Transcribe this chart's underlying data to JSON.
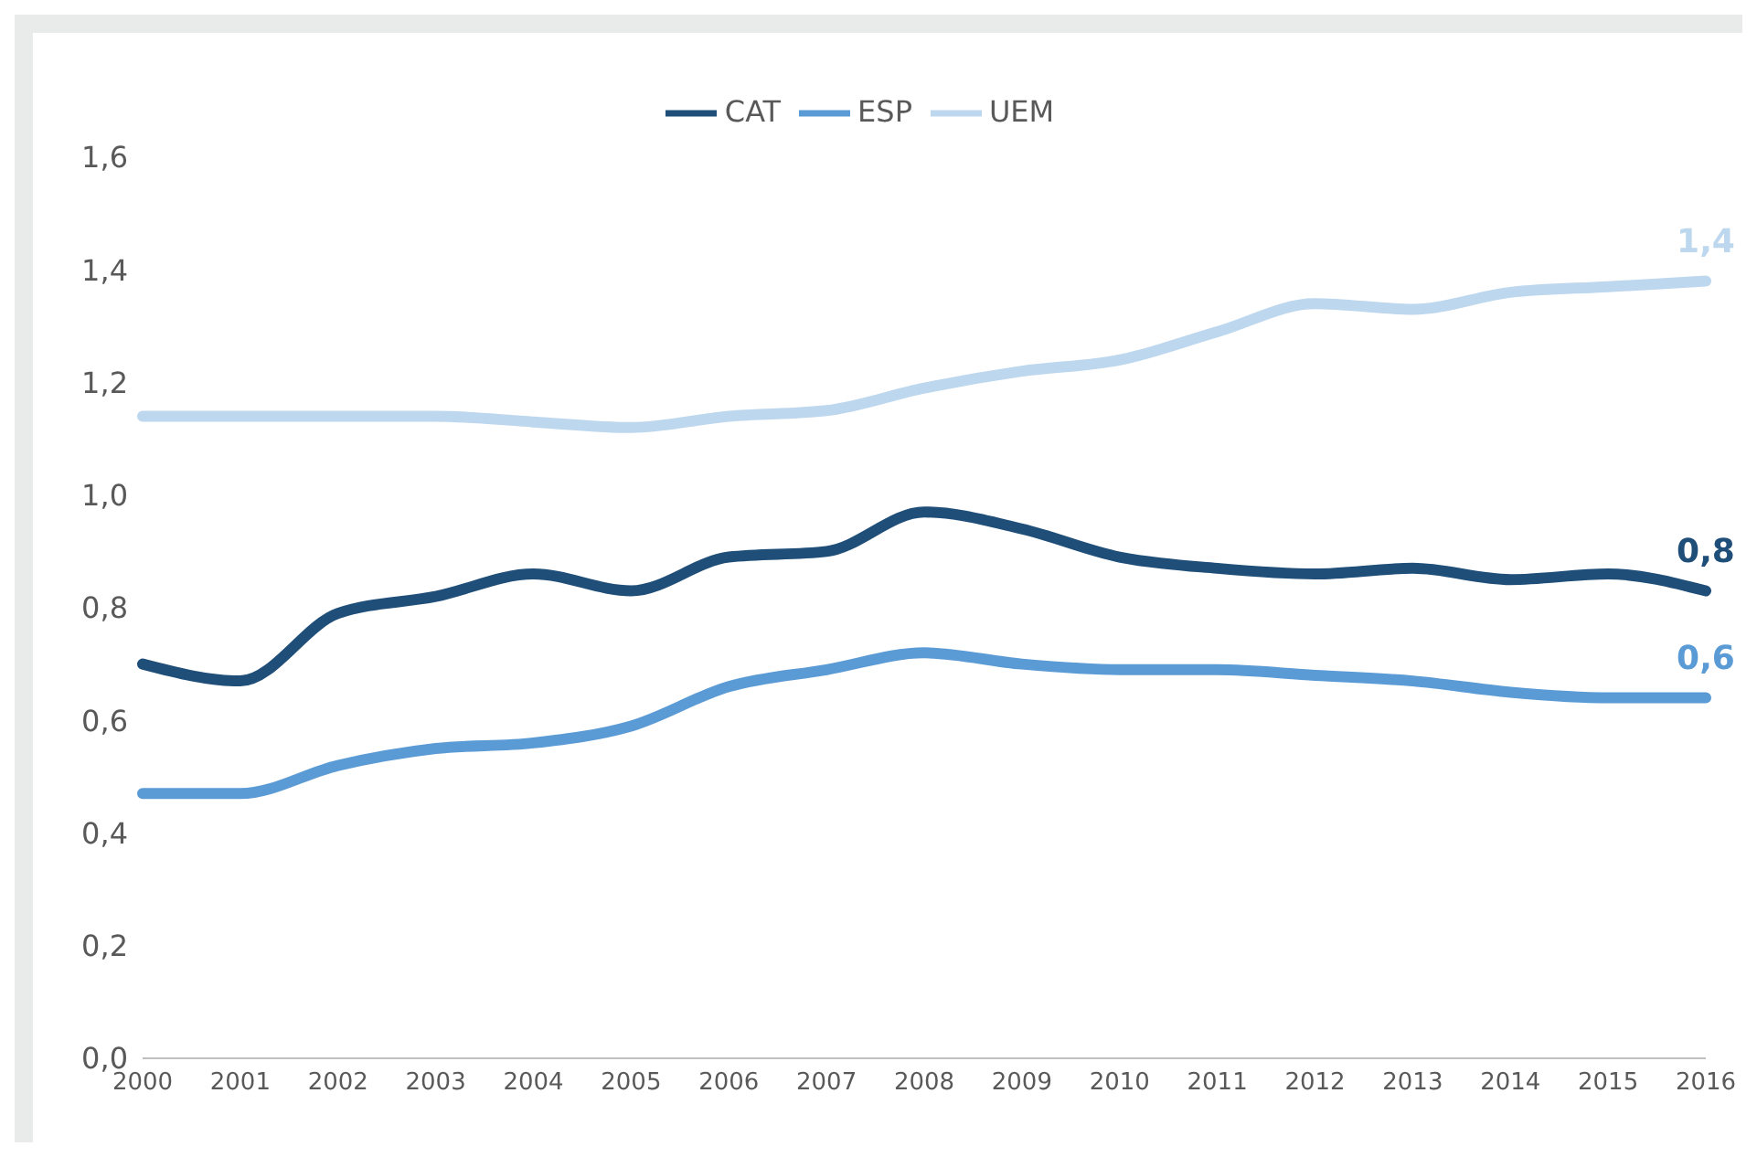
{
  "chart_data": {
    "type": "line",
    "categories": [
      "2000",
      "2001",
      "2002",
      "2003",
      "2004",
      "2005",
      "2006",
      "2007",
      "2008",
      "2009",
      "2010",
      "2011",
      "2012",
      "2013",
      "2014",
      "2015",
      "2016"
    ],
    "series": [
      {
        "name": "UEM",
        "color": "#bdd7ee",
        "values": [
          1.14,
          1.14,
          1.14,
          1.14,
          1.13,
          1.12,
          1.14,
          1.15,
          1.19,
          1.22,
          1.24,
          1.29,
          1.34,
          1.33,
          1.36,
          1.37,
          1.38
        ],
        "value_labels": [
          null,
          null,
          null,
          null,
          null,
          null,
          null,
          null,
          null,
          null,
          null,
          null,
          null,
          null,
          null,
          null,
          "1,4"
        ]
      },
      {
        "name": "CAT",
        "color": "#1f4e79",
        "values": [
          0.7,
          0.67,
          0.79,
          0.82,
          0.86,
          0.83,
          0.89,
          0.9,
          0.97,
          0.94,
          0.89,
          0.87,
          0.86,
          0.87,
          0.85,
          0.86,
          0.83
        ],
        "value_labels": [
          null,
          null,
          null,
          null,
          null,
          null,
          null,
          null,
          null,
          null,
          null,
          null,
          null,
          null,
          null,
          null,
          "0,8"
        ]
      },
      {
        "name": "ESP",
        "color": "#5b9bd5",
        "values": [
          0.47,
          0.47,
          0.52,
          0.55,
          0.56,
          0.59,
          0.66,
          0.69,
          0.72,
          0.7,
          0.69,
          0.69,
          0.68,
          0.67,
          0.65,
          0.64,
          0.64
        ],
        "value_labels": [
          null,
          null,
          null,
          null,
          null,
          null,
          null,
          null,
          null,
          null,
          null,
          null,
          null,
          null,
          null,
          null,
          "0,6"
        ]
      }
    ],
    "ylim": [
      0,
      1.6
    ],
    "yticks": [
      {
        "value": 0,
        "label": "0,0"
      },
      {
        "value": 0.2,
        "label": "0,2"
      },
      {
        "value": 0.4,
        "label": "0,4"
      },
      {
        "value": 0.6,
        "label": "0,6"
      },
      {
        "value": 0.8,
        "label": "0,8"
      },
      {
        "value": 1.0,
        "label": "1,0"
      },
      {
        "value": 1.2,
        "label": "1,2"
      },
      {
        "value": 1.4,
        "label": "1,4"
      },
      {
        "value": 1.6,
        "label": "1,6"
      }
    ],
    "legend": "top",
    "marker": "none",
    "line_style": "solid"
  }
}
